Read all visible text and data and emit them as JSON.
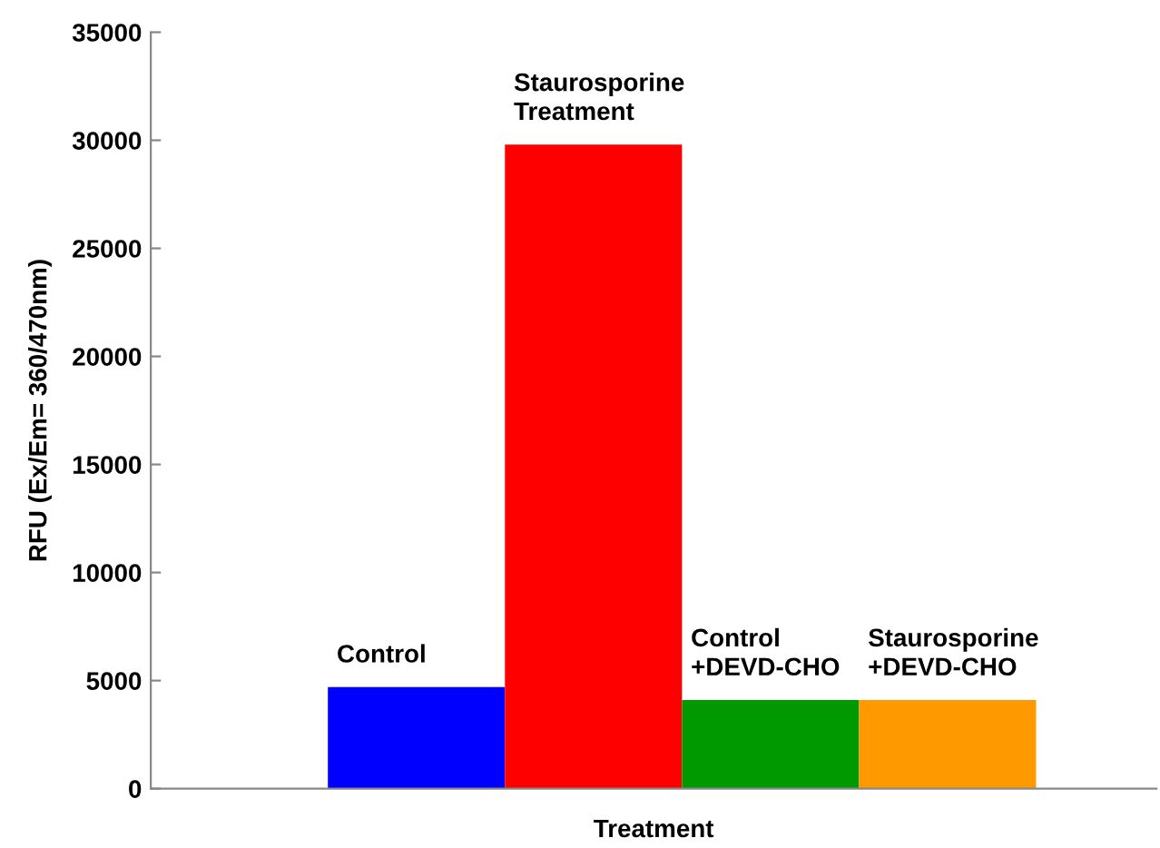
{
  "chart_data": {
    "type": "bar",
    "xlabel": "Treatment",
    "ylabel": "RFU (Ex/Em= 360/470nm)",
    "categories": [
      "Control",
      "Staurosporine\nTreatment",
      "Control\n+DEVD-CHO",
      "Staurosporine\n+DEVD-CHO"
    ],
    "values": [
      4700,
      29800,
      4100,
      4100
    ],
    "colors": [
      "#0000ff",
      "#ff0000",
      "#009900",
      "#ff9900"
    ],
    "ylim": [
      0,
      35000
    ],
    "yticks": [
      0,
      5000,
      10000,
      15000,
      20000,
      25000,
      30000,
      35000
    ],
    "grid": false,
    "legend": false
  }
}
